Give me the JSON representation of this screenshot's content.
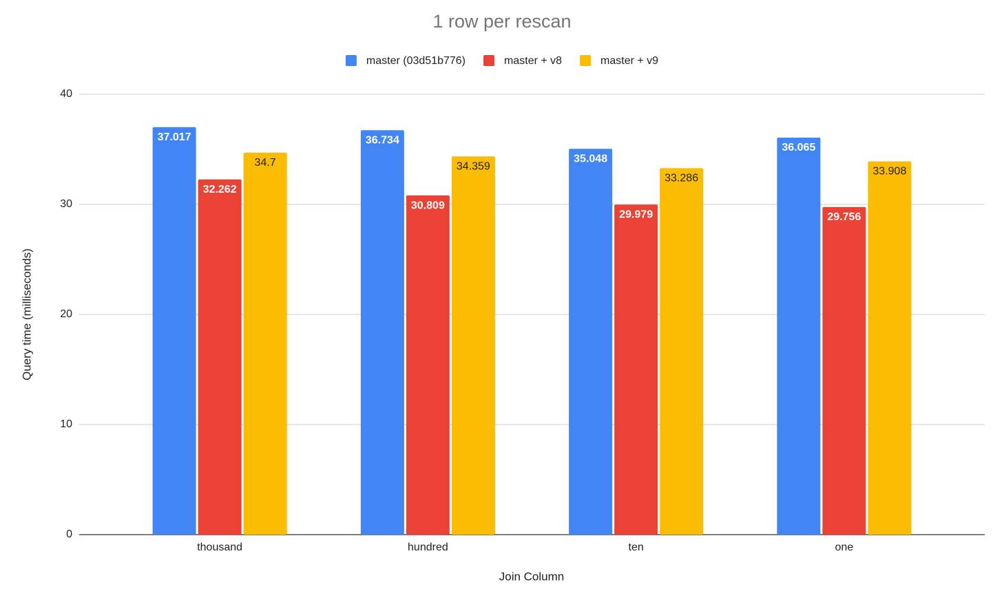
{
  "chart_data": {
    "type": "bar",
    "title": "1 row per rescan",
    "x_label": "Join Column",
    "y_label": "Query time (milliseconds)",
    "categories": [
      "thousand",
      "hundred",
      "ten",
      "one"
    ],
    "series": [
      {
        "name": "master (03d51b776)",
        "color": "#4285f4",
        "values": [
          37.017,
          36.734,
          35.048,
          36.065
        ]
      },
      {
        "name": "master + v8",
        "color": "#ea4335",
        "values": [
          32.262,
          30.809,
          29.979,
          29.756
        ]
      },
      {
        "name": "master + v9",
        "color": "#fbbc04",
        "values": [
          34.7,
          34.359,
          33.286,
          33.908
        ]
      }
    ],
    "ylim": [
      0,
      40
    ],
    "yticks": [
      0,
      10,
      20,
      30,
      40
    ],
    "grid": true,
    "legend": "top"
  }
}
